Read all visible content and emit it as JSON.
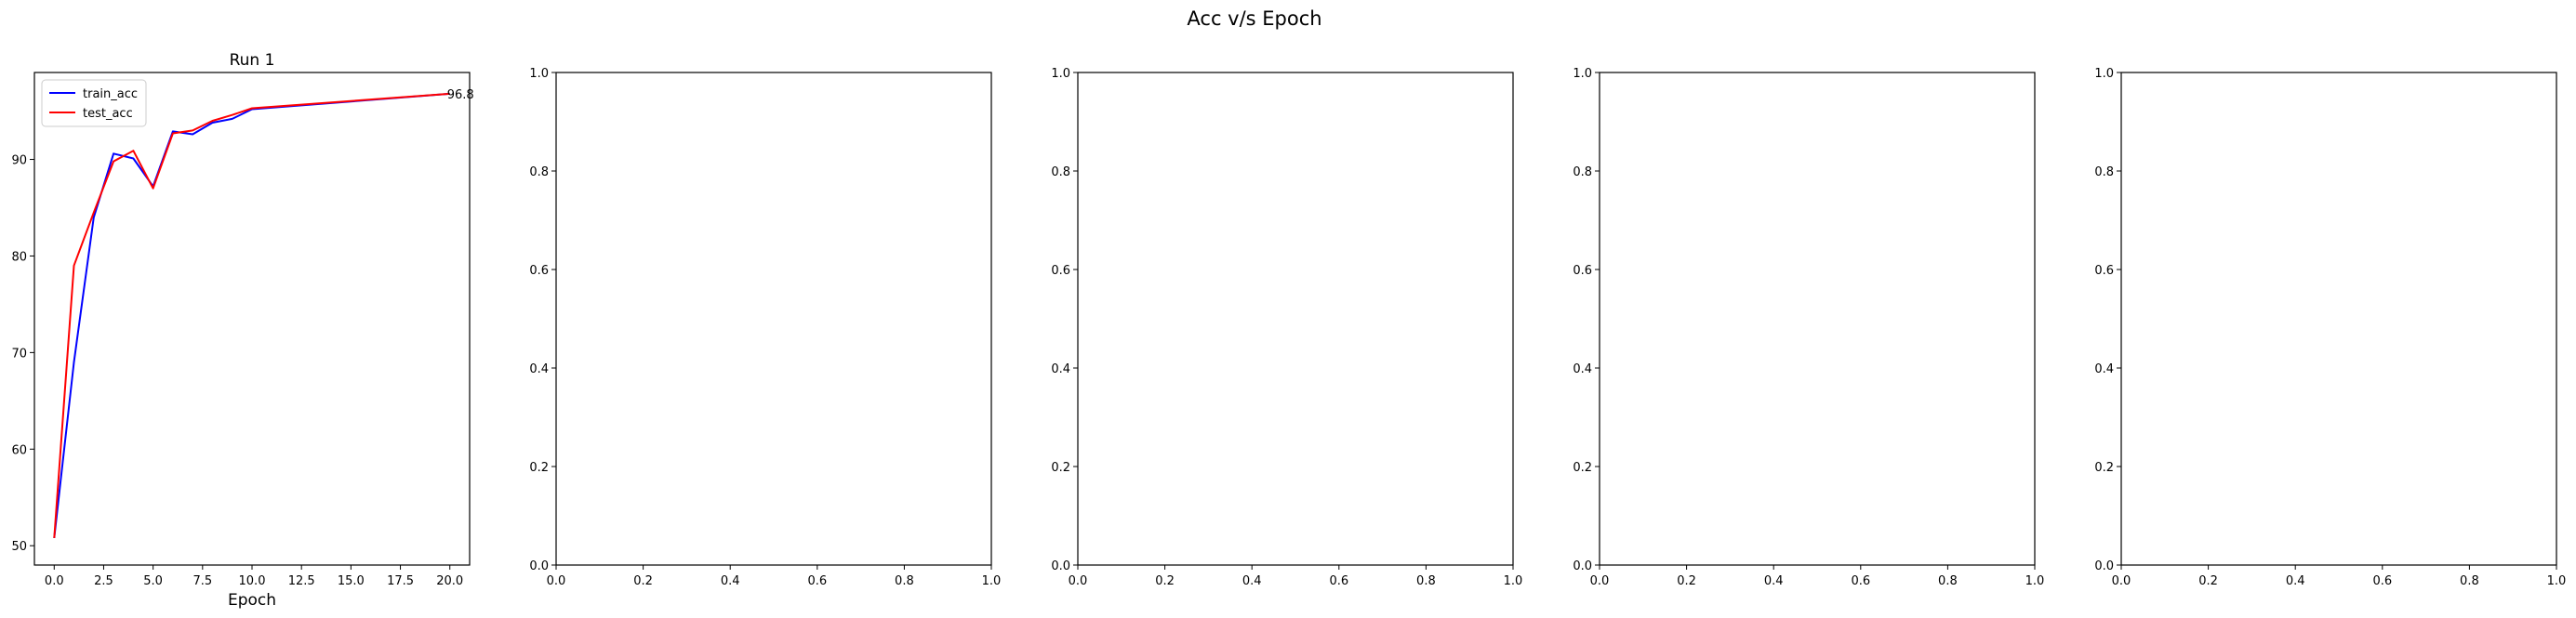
{
  "figure": {
    "suptitle": "Acc v/s Epoch"
  },
  "chart_data": [
    {
      "type": "line",
      "title": "Run 1",
      "xlabel": "Epoch",
      "ylabel": "",
      "xlim": [
        -1.0,
        21.0
      ],
      "ylim": [
        48.0,
        99.0
      ],
      "xticks": [
        "0.0",
        "2.5",
        "5.0",
        "7.5",
        "10.0",
        "12.5",
        "15.0",
        "17.5",
        "20.0"
      ],
      "xtick_values": [
        0,
        2.5,
        5,
        7.5,
        10,
        12.5,
        15,
        17.5,
        20
      ],
      "yticks": [
        "50",
        "60",
        "70",
        "80",
        "90"
      ],
      "ytick_values": [
        50,
        60,
        70,
        80,
        90
      ],
      "legend": "upper left",
      "series": [
        {
          "name": "train_acc",
          "color": "#0000ff",
          "x": [
            0,
            1,
            2,
            3,
            4,
            5,
            6,
            7,
            8,
            9,
            10,
            20
          ],
          "y": [
            50.8,
            69.0,
            84.0,
            90.6,
            90.1,
            87.2,
            92.9,
            92.6,
            93.8,
            94.2,
            95.2,
            96.8
          ]
        },
        {
          "name": "test_acc",
          "color": "#ff0000",
          "x": [
            0,
            1,
            2,
            3,
            4,
            5,
            6,
            7,
            8,
            9,
            10,
            20
          ],
          "y": [
            50.8,
            79.0,
            84.5,
            89.8,
            90.9,
            87.0,
            92.7,
            93.0,
            94.0,
            94.6,
            95.3,
            96.8
          ]
        }
      ],
      "annotations": [
        {
          "text": "96.8",
          "x": 20,
          "y": 96.8
        }
      ]
    },
    {
      "type": "line",
      "title": "",
      "xlabel": "",
      "ylabel": "",
      "xlim": [
        0,
        1
      ],
      "ylim": [
        0,
        1
      ],
      "xticks": [
        "0.0",
        "0.2",
        "0.4",
        "0.6",
        "0.8",
        "1.0"
      ],
      "xtick_values": [
        0,
        0.2,
        0.4,
        0.6,
        0.8,
        1.0
      ],
      "yticks": [
        "0.0",
        "0.2",
        "0.4",
        "0.6",
        "0.8",
        "1.0"
      ],
      "ytick_values": [
        0,
        0.2,
        0.4,
        0.6,
        0.8,
        1.0
      ],
      "series": []
    },
    {
      "type": "line",
      "title": "",
      "xlabel": "",
      "ylabel": "",
      "xlim": [
        0,
        1
      ],
      "ylim": [
        0,
        1
      ],
      "xticks": [
        "0.0",
        "0.2",
        "0.4",
        "0.6",
        "0.8",
        "1.0"
      ],
      "xtick_values": [
        0,
        0.2,
        0.4,
        0.6,
        0.8,
        1.0
      ],
      "yticks": [
        "0.0",
        "0.2",
        "0.4",
        "0.6",
        "0.8",
        "1.0"
      ],
      "ytick_values": [
        0,
        0.2,
        0.4,
        0.6,
        0.8,
        1.0
      ],
      "series": []
    },
    {
      "type": "line",
      "title": "",
      "xlabel": "",
      "ylabel": "",
      "xlim": [
        0,
        1
      ],
      "ylim": [
        0,
        1
      ],
      "xticks": [
        "0.0",
        "0.2",
        "0.4",
        "0.6",
        "0.8",
        "1.0"
      ],
      "xtick_values": [
        0,
        0.2,
        0.4,
        0.6,
        0.8,
        1.0
      ],
      "yticks": [
        "0.0",
        "0.2",
        "0.4",
        "0.6",
        "0.8",
        "1.0"
      ],
      "ytick_values": [
        0,
        0.2,
        0.4,
        0.6,
        0.8,
        1.0
      ],
      "series": []
    },
    {
      "type": "line",
      "title": "",
      "xlabel": "",
      "ylabel": "",
      "xlim": [
        0,
        1
      ],
      "ylim": [
        0,
        1
      ],
      "xticks": [
        "0.0",
        "0.2",
        "0.4",
        "0.6",
        "0.8",
        "1.0"
      ],
      "xtick_values": [
        0,
        0.2,
        0.4,
        0.6,
        0.8,
        1.0
      ],
      "yticks": [
        "0.0",
        "0.2",
        "0.4",
        "0.6",
        "0.8",
        "1.0"
      ],
      "ytick_values": [
        0,
        0.2,
        0.4,
        0.6,
        0.8,
        1.0
      ],
      "series": []
    }
  ]
}
